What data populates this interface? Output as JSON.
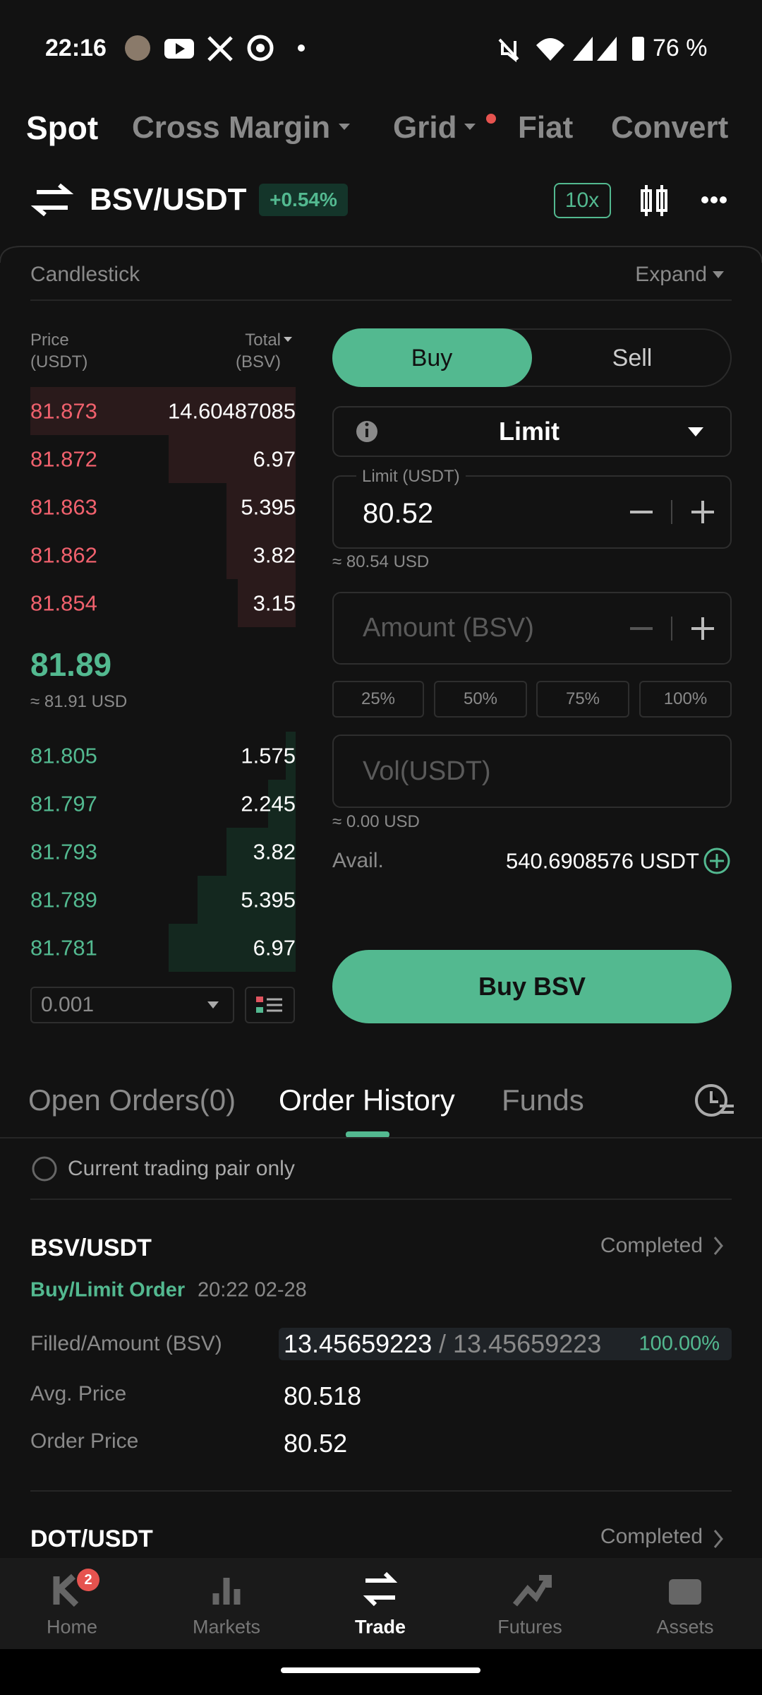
{
  "status_bar": {
    "time": "22:16",
    "battery": "76 %"
  },
  "tabs": [
    "Spot",
    "Cross Margin",
    "Grid",
    "Fiat",
    "Convert"
  ],
  "pair": {
    "symbol": "BSV/USDT",
    "change": "+0.54%",
    "leverage": "10x"
  },
  "chart_bar": {
    "label": "Candlestick",
    "expand": "Expand"
  },
  "order_book": {
    "price_label": "Price",
    "price_unit": "(USDT)",
    "total_label": "Total",
    "total_unit": "(BSV)",
    "asks": [
      {
        "price": "81.873",
        "total": "14.60487085"
      },
      {
        "price": "81.872",
        "total": "6.97"
      },
      {
        "price": "81.863",
        "total": "5.395"
      },
      {
        "price": "81.862",
        "total": "3.82"
      },
      {
        "price": "81.854",
        "total": "3.15"
      }
    ],
    "last_price": "81.89",
    "last_usd": "≈ 81.91 USD",
    "bids": [
      {
        "price": "81.805",
        "total": "1.575"
      },
      {
        "price": "81.797",
        "total": "2.245"
      },
      {
        "price": "81.793",
        "total": "3.82"
      },
      {
        "price": "81.789",
        "total": "5.395"
      },
      {
        "price": "81.781",
        "total": "6.97"
      }
    ],
    "precision": "0.001"
  },
  "form": {
    "buy": "Buy",
    "sell": "Sell",
    "order_type": "Limit",
    "limit_label": "Limit (USDT)",
    "limit_value": "80.52",
    "limit_usd": "≈ 80.54 USD",
    "amount_placeholder": "Amount (BSV)",
    "percents": [
      "25%",
      "50%",
      "75%",
      "100%"
    ],
    "vol_placeholder": "Vol(USDT)",
    "vol_usd": "≈ 0.00 USD",
    "avail_label": "Avail.",
    "avail_value": "540.6908576 USDT",
    "submit": "Buy BSV"
  },
  "order_tabs": [
    "Open Orders(0)",
    "Order History",
    "Funds"
  ],
  "filter": "Current trading pair only",
  "orders": [
    {
      "pair": "BSV/USDT",
      "status": "Completed",
      "side": "Buy/Limit Order",
      "time": "20:22 02-28",
      "filled_label": "Filled/Amount (BSV)",
      "filled": "13.45659223",
      "amount": "/ 13.45659223",
      "percent": "100.00%",
      "avg_label": "Avg. Price",
      "avg": "80.518",
      "price_label": "Order Price",
      "price": "80.52"
    },
    {
      "pair": "DOT/USDT",
      "status": "Completed"
    }
  ],
  "nav": [
    {
      "label": "Home",
      "badge": "2"
    },
    {
      "label": "Markets"
    },
    {
      "label": "Trade"
    },
    {
      "label": "Futures"
    },
    {
      "label": "Assets"
    }
  ]
}
